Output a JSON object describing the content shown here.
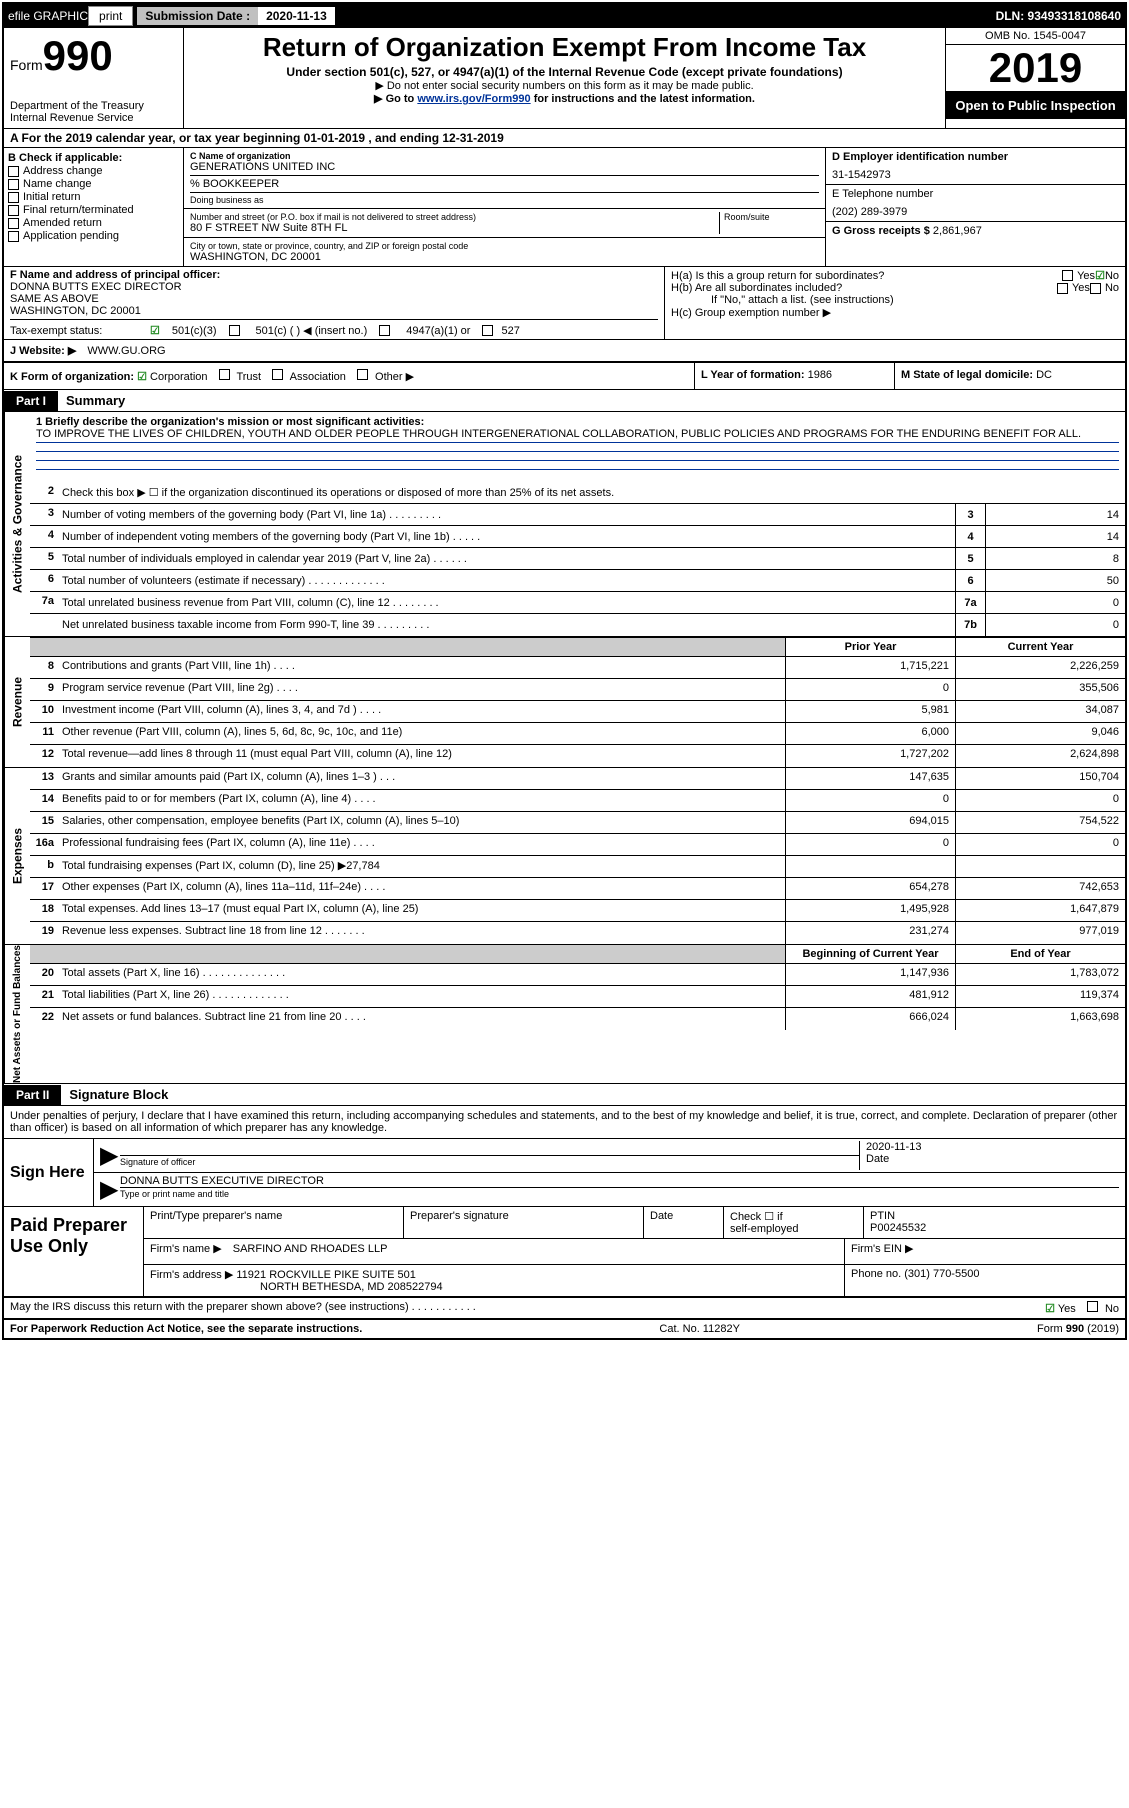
{
  "topbar": {
    "efile": "efile GRAPHIC",
    "print": "print",
    "sub_label": "Submission Date :",
    "sub_date": "2020-11-13",
    "dln": "DLN: 93493318108640"
  },
  "header": {
    "form_label": "Form",
    "form_num": "990",
    "dept": "Department of the Treasury",
    "irs": "Internal Revenue Service",
    "title": "Return of Organization Exempt From Income Tax",
    "sub1": "Under section 501(c), 527, or 4947(a)(1) of the Internal Revenue Code (except private foundations)",
    "sub2": "▶ Do not enter social security numbers on this form as it may be made public.",
    "sub3a": "▶ Go to ",
    "sub3link": "www.irs.gov/Form990",
    "sub3b": " for instructions and the latest information.",
    "omb": "OMB No. 1545-0047",
    "year": "2019",
    "open": "Open to Public Inspection"
  },
  "row_a": "A   For the 2019 calendar year, or tax year beginning 01-01-2019    , and ending 12-31-2019",
  "col_b": {
    "header": "B Check if applicable:",
    "items": [
      "Address change",
      "Name change",
      "Initial return",
      "Final return/terminated",
      "Amended return",
      "Application pending"
    ]
  },
  "col_c": {
    "name_label": "C Name of organization",
    "name": "GENERATIONS UNITED INC",
    "care_of": "% BOOKKEEPER",
    "dba_label": "Doing business as",
    "addr_label": "Number and street (or P.O. box if mail is not delivered to street address)",
    "room_label": "Room/suite",
    "addr": "80 F STREET NW Suite 8TH FL",
    "city_label": "City or town, state or province, country, and ZIP or foreign postal code",
    "city": "WASHINGTON, DC  20001"
  },
  "col_d": {
    "ein_label": "D Employer identification number",
    "ein": "31-1542973",
    "tel_label": "E Telephone number",
    "tel": "(202) 289-3979",
    "gross_label": "G Gross receipts $",
    "gross": "2,861,967"
  },
  "fi": {
    "f_label": "F  Name and address of principal officer:",
    "f_name": "DONNA BUTTS EXEC DIRECTOR",
    "f_addr1": "SAME AS ABOVE",
    "f_addr2": "WASHINGTON, DC  20001",
    "ha": "H(a)  Is this a group return for subordinates?",
    "hb": "H(b)  Are all subordinates included?",
    "hb_note": "If \"No,\" attach a list. (see instructions)",
    "hc": "H(c)  Group exemption number ▶"
  },
  "te": {
    "label": "Tax-exempt status:",
    "opt1": "501(c)(3)",
    "opt2": "501(c) (  ) ◀ (insert no.)",
    "opt3": "4947(a)(1) or",
    "opt4": "527"
  },
  "web": {
    "label": "J   Website: ▶",
    "url": "WWW.GU.ORG"
  },
  "klm": {
    "k": "K Form of organization:",
    "k_opts": [
      "Corporation",
      "Trust",
      "Association",
      "Other ▶"
    ],
    "l_label": "L Year of formation:",
    "l_val": "1986",
    "m_label": "M State of legal domicile:",
    "m_val": "DC"
  },
  "part1": {
    "tag": "Part I",
    "title": "Summary"
  },
  "mission": {
    "q": "1  Briefly describe the organization's mission or most significant activities:",
    "text": "TO IMPROVE THE LIVES OF CHILDREN, YOUTH AND OLDER PEOPLE THROUGH INTERGENERATIONAL COLLABORATION, PUBLIC POLICIES AND PROGRAMS FOR THE ENDURING BENEFIT FOR ALL."
  },
  "governance": {
    "side": "Activities & Governance",
    "l2": "Check this box ▶ ☐  if the organization discontinued its operations or disposed of more than 25% of its net assets.",
    "rows": [
      {
        "n": "3",
        "d": "Number of voting members of the governing body (Part VI, line 1a)   .    .    .    .    .    .    .    .    .",
        "b": "3",
        "v": "14"
      },
      {
        "n": "4",
        "d": "Number of independent voting members of the governing body (Part VI, line 1b)  .    .    .    .    .",
        "b": "4",
        "v": "14"
      },
      {
        "n": "5",
        "d": "Total number of individuals employed in calendar year 2019 (Part V, line 2a)  .    .    .    .    .    .",
        "b": "5",
        "v": "8"
      },
      {
        "n": "6",
        "d": "Total number of volunteers (estimate if necessary)    .    .    .    .    .    .    .    .    .    .    .    .    .",
        "b": "6",
        "v": "50"
      },
      {
        "n": "7a",
        "d": "Total unrelated business revenue from Part VIII, column (C), line 12  .    .    .    .    .    .    .    .",
        "b": "7a",
        "v": "0"
      },
      {
        "n": "",
        "d": "Net unrelated business taxable income from Form 990-T, line 39   .    .    .    .    .    .    .    .    .",
        "b": "7b",
        "v": "0"
      }
    ]
  },
  "col_headers": {
    "py": "Prior Year",
    "cy": "Current Year"
  },
  "revenue": {
    "side": "Revenue",
    "rows": [
      {
        "n": "8",
        "d": "Contributions and grants (Part VIII, line 1h)   .    .    .    .",
        "py": "1,715,221",
        "cy": "2,226,259"
      },
      {
        "n": "9",
        "d": "Program service revenue (Part VIII, line 2g)   .    .    .    .",
        "py": "0",
        "cy": "355,506"
      },
      {
        "n": "10",
        "d": "Investment income (Part VIII, column (A), lines 3, 4, and 7d )   .    .    .    .",
        "py": "5,981",
        "cy": "34,087"
      },
      {
        "n": "11",
        "d": "Other revenue (Part VIII, column (A), lines 5, 6d, 8c, 9c, 10c, and 11e)",
        "py": "6,000",
        "cy": "9,046"
      },
      {
        "n": "12",
        "d": "Total revenue—add lines 8 through 11 (must equal Part VIII, column (A), line 12)",
        "py": "1,727,202",
        "cy": "2,624,898"
      }
    ]
  },
  "expenses": {
    "side": "Expenses",
    "rows": [
      {
        "n": "13",
        "d": "Grants and similar amounts paid (Part IX, column (A), lines 1–3 )  .    .    .",
        "py": "147,635",
        "cy": "150,704"
      },
      {
        "n": "14",
        "d": "Benefits paid to or for members (Part IX, column (A), line 4)  .    .    .    .",
        "py": "0",
        "cy": "0"
      },
      {
        "n": "15",
        "d": "Salaries, other compensation, employee benefits (Part IX, column (A), lines 5–10)",
        "py": "694,015",
        "cy": "754,522"
      },
      {
        "n": "16a",
        "d": "Professional fundraising fees (Part IX, column (A), line 11e)  .    .    .    .",
        "py": "0",
        "cy": "0"
      },
      {
        "n": "b",
        "d": "Total fundraising expenses (Part IX, column (D), line 25) ▶27,784",
        "py": "",
        "cy": "",
        "gray": true
      },
      {
        "n": "17",
        "d": "Other expenses (Part IX, column (A), lines 11a–11d, 11f–24e)   .    .    .    .",
        "py": "654,278",
        "cy": "742,653"
      },
      {
        "n": "18",
        "d": "Total expenses. Add lines 13–17 (must equal Part IX, column (A), line 25)",
        "py": "1,495,928",
        "cy": "1,647,879"
      },
      {
        "n": "19",
        "d": "Revenue less expenses. Subtract line 18 from line 12  .    .    .    .    .    .    .",
        "py": "231,274",
        "cy": "977,019"
      }
    ]
  },
  "netassets": {
    "side": "Net Assets or Fund Balances",
    "hdr_py": "Beginning of Current Year",
    "hdr_cy": "End of Year",
    "rows": [
      {
        "n": "20",
        "d": "Total assets (Part X, line 16)  .    .    .    .    .    .    .    .    .    .    .    .    .    .",
        "py": "1,147,936",
        "cy": "1,783,072"
      },
      {
        "n": "21",
        "d": "Total liabilities (Part X, line 26)  .    .    .    .    .    .    .    .    .    .    .    .    .",
        "py": "481,912",
        "cy": "119,374"
      },
      {
        "n": "22",
        "d": "Net assets or fund balances. Subtract line 21 from line 20   .    .    .    .",
        "py": "666,024",
        "cy": "1,663,698"
      }
    ]
  },
  "part2": {
    "tag": "Part II",
    "title": "Signature Block"
  },
  "sig": {
    "decl": "Under penalties of perjury, I declare that I have examined this return, including accompanying schedules and statements, and to the best of my knowledge and belief, it is true, correct, and complete. Declaration of preparer (other than officer) is based on all information of which preparer has any knowledge.",
    "sign_here": "Sign Here",
    "sig_officer": "Signature of officer",
    "date_label": "Date",
    "date": "2020-11-13",
    "name_title": "DONNA BUTTS  EXECUTIVE DIRECTOR",
    "type_print": "Type or print name and title"
  },
  "prep": {
    "label": "Paid Preparer Use Only",
    "h1": "Print/Type preparer's name",
    "h2": "Preparer's signature",
    "h3": "Date",
    "h4a": "Check ☐ if",
    "h4b": "self-employed",
    "h5a": "PTIN",
    "h5b": "P00245532",
    "firm_name_label": "Firm's name     ▶",
    "firm_name": "SARFINO AND RHOADES LLP",
    "firm_ein_label": "Firm's EIN ▶",
    "firm_addr_label": "Firm's address ▶",
    "firm_addr1": "11921 ROCKVILLE PIKE SUITE 501",
    "firm_addr2": "NORTH BETHESDA, MD  208522794",
    "phone_label": "Phone no.",
    "phone": "(301) 770-5500"
  },
  "footer": {
    "q": "May the IRS discuss this return with the preparer shown above? (see instructions)   .    .    .    .    .    .    .    .    .    .    .",
    "yes": "Yes",
    "no": "No",
    "pra": "For Paperwork Reduction Act Notice, see the separate instructions.",
    "cat": "Cat. No. 11282Y",
    "form": "Form 990 (2019)"
  }
}
